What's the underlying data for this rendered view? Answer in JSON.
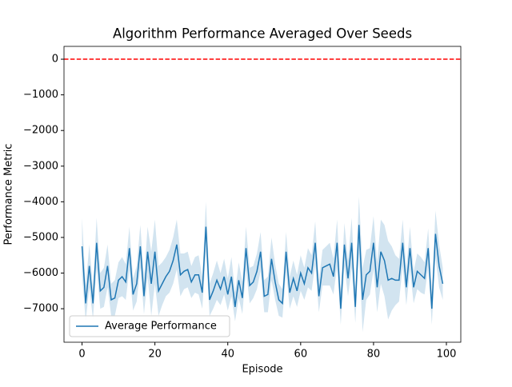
{
  "chart_data": {
    "type": "line",
    "title": "Algorithm Performance Averaged Over Seeds",
    "x_label": "Episode",
    "y_label": "Performance Metric",
    "x": [
      0,
      1,
      2,
      3,
      4,
      5,
      6,
      7,
      8,
      9,
      10,
      11,
      12,
      13,
      14,
      15,
      16,
      17,
      18,
      19,
      20,
      21,
      22,
      23,
      24,
      25,
      26,
      27,
      28,
      29,
      30,
      31,
      32,
      33,
      34,
      35,
      36,
      37,
      38,
      39,
      40,
      41,
      42,
      43,
      44,
      45,
      46,
      47,
      48,
      49,
      50,
      51,
      52,
      53,
      54,
      55,
      56,
      57,
      58,
      59,
      60,
      61,
      62,
      63,
      64,
      65,
      66,
      67,
      68,
      69,
      70,
      71,
      72,
      73,
      74,
      75,
      76,
      77,
      78,
      79,
      80,
      81,
      82,
      83,
      84,
      85,
      86,
      87,
      88,
      89,
      90,
      91,
      92,
      93,
      94,
      95,
      96,
      97,
      98,
      99
    ],
    "series": [
      {
        "name": "Average Performance",
        "color": "#1f77b4",
        "band_color": "#1f77b4",
        "values": [
          -5250,
          -6850,
          -5800,
          -6850,
          -5150,
          -6500,
          -6400,
          -5800,
          -6750,
          -6700,
          -6200,
          -6100,
          -6250,
          -5300,
          -6600,
          -6300,
          -5250,
          -6650,
          -5400,
          -6300,
          -5400,
          -6500,
          -6300,
          -6100,
          -5950,
          -5650,
          -5200,
          -6050,
          -5950,
          -5900,
          -6250,
          -6050,
          -6050,
          -6550,
          -4700,
          -6750,
          -6500,
          -6200,
          -6450,
          -6100,
          -6600,
          -6100,
          -6950,
          -6200,
          -6700,
          -5300,
          -6350,
          -6250,
          -5950,
          -5400,
          -6650,
          -6600,
          -5600,
          -6250,
          -6750,
          -6850,
          -5400,
          -6550,
          -6150,
          -6500,
          -6000,
          -6300,
          -5850,
          -6000,
          -5150,
          -6650,
          -5850,
          -5800,
          -5750,
          -6100,
          -5150,
          -7000,
          -5200,
          -6150,
          -5150,
          -6950,
          -4650,
          -6750,
          -6050,
          -5950,
          -5150,
          -6400,
          -5400,
          -5650,
          -6200,
          -6150,
          -6200,
          -6200,
          -5150,
          -6400,
          -5300,
          -6400,
          -5950,
          -6050,
          -6150,
          -5300,
          -7000,
          -4900,
          -5800,
          -6300
        ],
        "error": [
          800,
          500,
          600,
          450,
          700,
          500,
          550,
          600,
          450,
          500,
          500,
          550,
          500,
          600,
          450,
          500,
          600,
          500,
          700,
          900,
          900,
          700,
          600,
          550,
          600,
          650,
          700,
          600,
          500,
          500,
          450,
          500,
          550,
          450,
          700,
          450,
          500,
          550,
          450,
          500,
          450,
          550,
          400,
          500,
          450,
          600,
          500,
          450,
          500,
          550,
          450,
          500,
          600,
          500,
          450,
          400,
          550,
          450,
          500,
          450,
          500,
          450,
          550,
          500,
          600,
          450,
          500,
          550,
          600,
          500,
          650,
          450,
          600,
          500,
          700,
          450,
          800,
          900,
          700,
          650,
          750,
          700,
          900,
          1000,
          1100,
          900,
          700,
          600,
          650,
          500,
          600,
          450,
          500,
          500,
          450,
          550,
          450,
          650,
          600,
          450
        ]
      }
    ],
    "hline": {
      "value": 0,
      "color": "#ff0000"
    },
    "xlim": [
      -4.95,
      103.95
    ],
    "ylim": [
      -7940,
      360
    ],
    "xticks": [
      0,
      20,
      40,
      60,
      80,
      100
    ],
    "yticks": [
      {
        "value": 0,
        "label": "0"
      },
      {
        "value": -1000,
        "label": "−1000"
      },
      {
        "value": -2000,
        "label": "−2000"
      },
      {
        "value": -3000,
        "label": "−3000"
      },
      {
        "value": -4000,
        "label": "−4000"
      },
      {
        "value": -5000,
        "label": "−5000"
      },
      {
        "value": -6000,
        "label": "−6000"
      },
      {
        "value": -7000,
        "label": "−7000"
      }
    ],
    "legend": "lower left"
  }
}
